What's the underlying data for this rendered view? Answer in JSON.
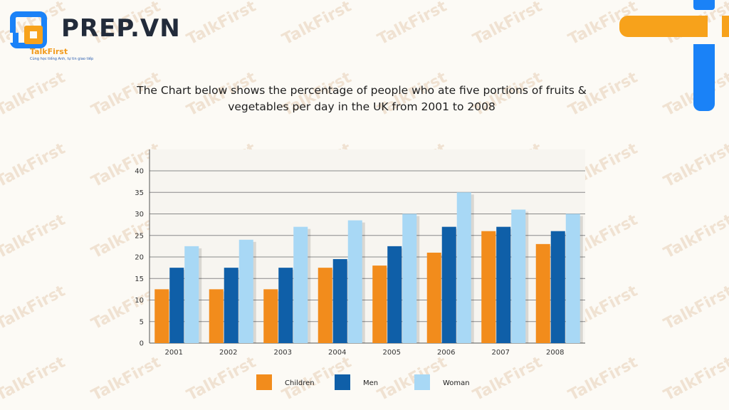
{
  "brand": {
    "name": "PREP.VN",
    "sub": "TalkFirst",
    "tagline": "Cùng học tiếng Anh, tự tin giao tiếp"
  },
  "watermark_text": "TalkFirst",
  "colors": {
    "children": "#f28c1c",
    "men": "#0f5fa8",
    "woman": "#a8d8f5",
    "accent_orange": "#f7a21b",
    "accent_blue": "#1a82f7"
  },
  "chart_data": {
    "type": "bar",
    "title": "The Chart below shows the percentage of people who ate five portions of fruits & vegetables per day in the UK from 2001 to 2008",
    "categories": [
      "2001",
      "2002",
      "2003",
      "2004",
      "2005",
      "2006",
      "2007",
      "2008"
    ],
    "series": [
      {
        "name": "Children",
        "values": [
          12.5,
          12.5,
          12.5,
          17.5,
          18,
          21,
          26,
          23
        ]
      },
      {
        "name": "Men",
        "values": [
          17.5,
          17.5,
          17.5,
          19.5,
          22.5,
          27,
          27,
          26
        ]
      },
      {
        "name": "Woman",
        "values": [
          22.5,
          24,
          27,
          28.5,
          30,
          35,
          31,
          30
        ]
      }
    ],
    "yticks": [
      0,
      5,
      10,
      15,
      20,
      25,
      30,
      35,
      40
    ],
    "ylim": [
      0,
      40
    ],
    "grid": true,
    "legend": "bottom",
    "xlabel": "",
    "ylabel": ""
  }
}
